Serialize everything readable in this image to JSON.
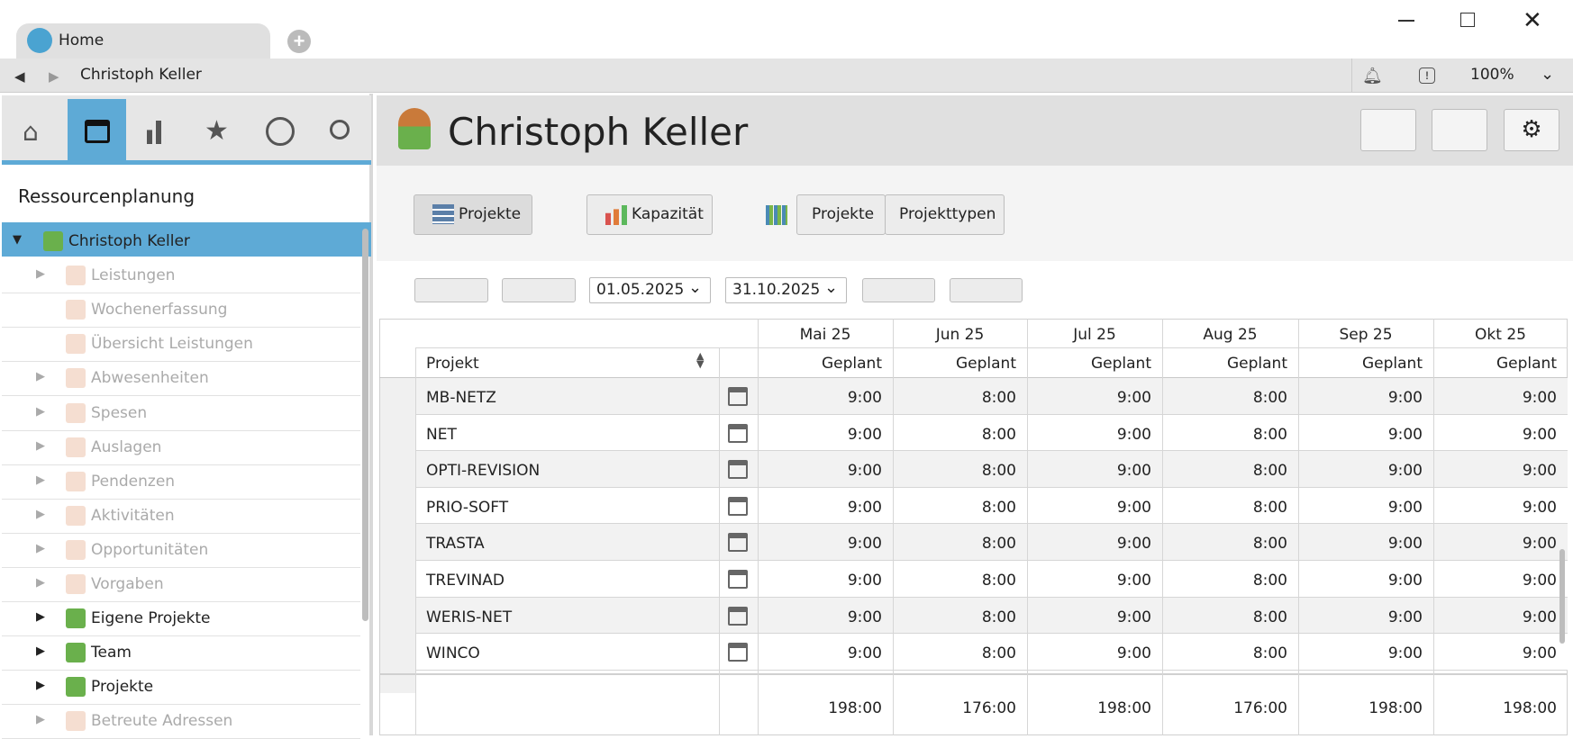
{
  "tab": {
    "title": "Home"
  },
  "nav": {
    "breadcrumb": "Christoph Keller",
    "zoom": "100%"
  },
  "sidebar": {
    "title": "Ressourcenplanung",
    "tree": [
      {
        "label": "Christoph Keller",
        "active": true
      },
      {
        "label": "Leistungen",
        "active": false
      },
      {
        "label": "Wochenerfassung",
        "active": false
      },
      {
        "label": "Übersicht Leistungen",
        "active": false
      },
      {
        "label": "Abwesenheiten",
        "active": false
      },
      {
        "label": "Spesen",
        "active": false
      },
      {
        "label": "Auslagen",
        "active": false
      },
      {
        "label": "Pendenzen",
        "active": false
      },
      {
        "label": "Aktivitäten",
        "active": false
      },
      {
        "label": "Opportunitäten",
        "active": false
      },
      {
        "label": "Vorgaben",
        "active": false
      },
      {
        "label": "Eigene Projekte",
        "active": true
      },
      {
        "label": "Team",
        "active": true
      },
      {
        "label": "Projekte",
        "active": true
      },
      {
        "label": "Betreute Adressen",
        "active": false
      }
    ]
  },
  "header": {
    "title": "Christoph Keller"
  },
  "toolbar": {
    "buttons": [
      "Projekte",
      "Kapazität"
    ],
    "toggle": [
      "Projekte",
      "Projekttypen"
    ]
  },
  "dates": {
    "from": "01.05.2025",
    "to": "31.10.2025"
  },
  "table": {
    "months": [
      "Mai 25",
      "Jun 25",
      "Jul 25",
      "Aug 25",
      "Sep 25",
      "Okt 25"
    ],
    "column_header": "Projekt",
    "subheader": "Geplant",
    "rows": [
      {
        "name": "MB-NETZ",
        "values": [
          "9:00",
          "8:00",
          "9:00",
          "8:00",
          "9:00",
          "9:00"
        ]
      },
      {
        "name": "NET",
        "values": [
          "9:00",
          "8:00",
          "9:00",
          "8:00",
          "9:00",
          "9:00"
        ]
      },
      {
        "name": "OPTI-REVISION",
        "values": [
          "9:00",
          "8:00",
          "9:00",
          "8:00",
          "9:00",
          "9:00"
        ]
      },
      {
        "name": "PRIO-SOFT",
        "values": [
          "9:00",
          "8:00",
          "9:00",
          "8:00",
          "9:00",
          "9:00"
        ]
      },
      {
        "name": "TRASTA",
        "values": [
          "9:00",
          "8:00",
          "9:00",
          "8:00",
          "9:00",
          "9:00"
        ]
      },
      {
        "name": "TREVINAD",
        "values": [
          "9:00",
          "8:00",
          "9:00",
          "8:00",
          "9:00",
          "9:00"
        ]
      },
      {
        "name": "WERIS-NET",
        "values": [
          "9:00",
          "8:00",
          "9:00",
          "8:00",
          "9:00",
          "9:00"
        ]
      },
      {
        "name": "WINCO",
        "values": [
          "9:00",
          "8:00",
          "9:00",
          "8:00",
          "9:00",
          "9:00"
        ]
      }
    ],
    "totals": [
      "198:00",
      "176:00",
      "198:00",
      "176:00",
      "198:00",
      "198:00"
    ]
  }
}
